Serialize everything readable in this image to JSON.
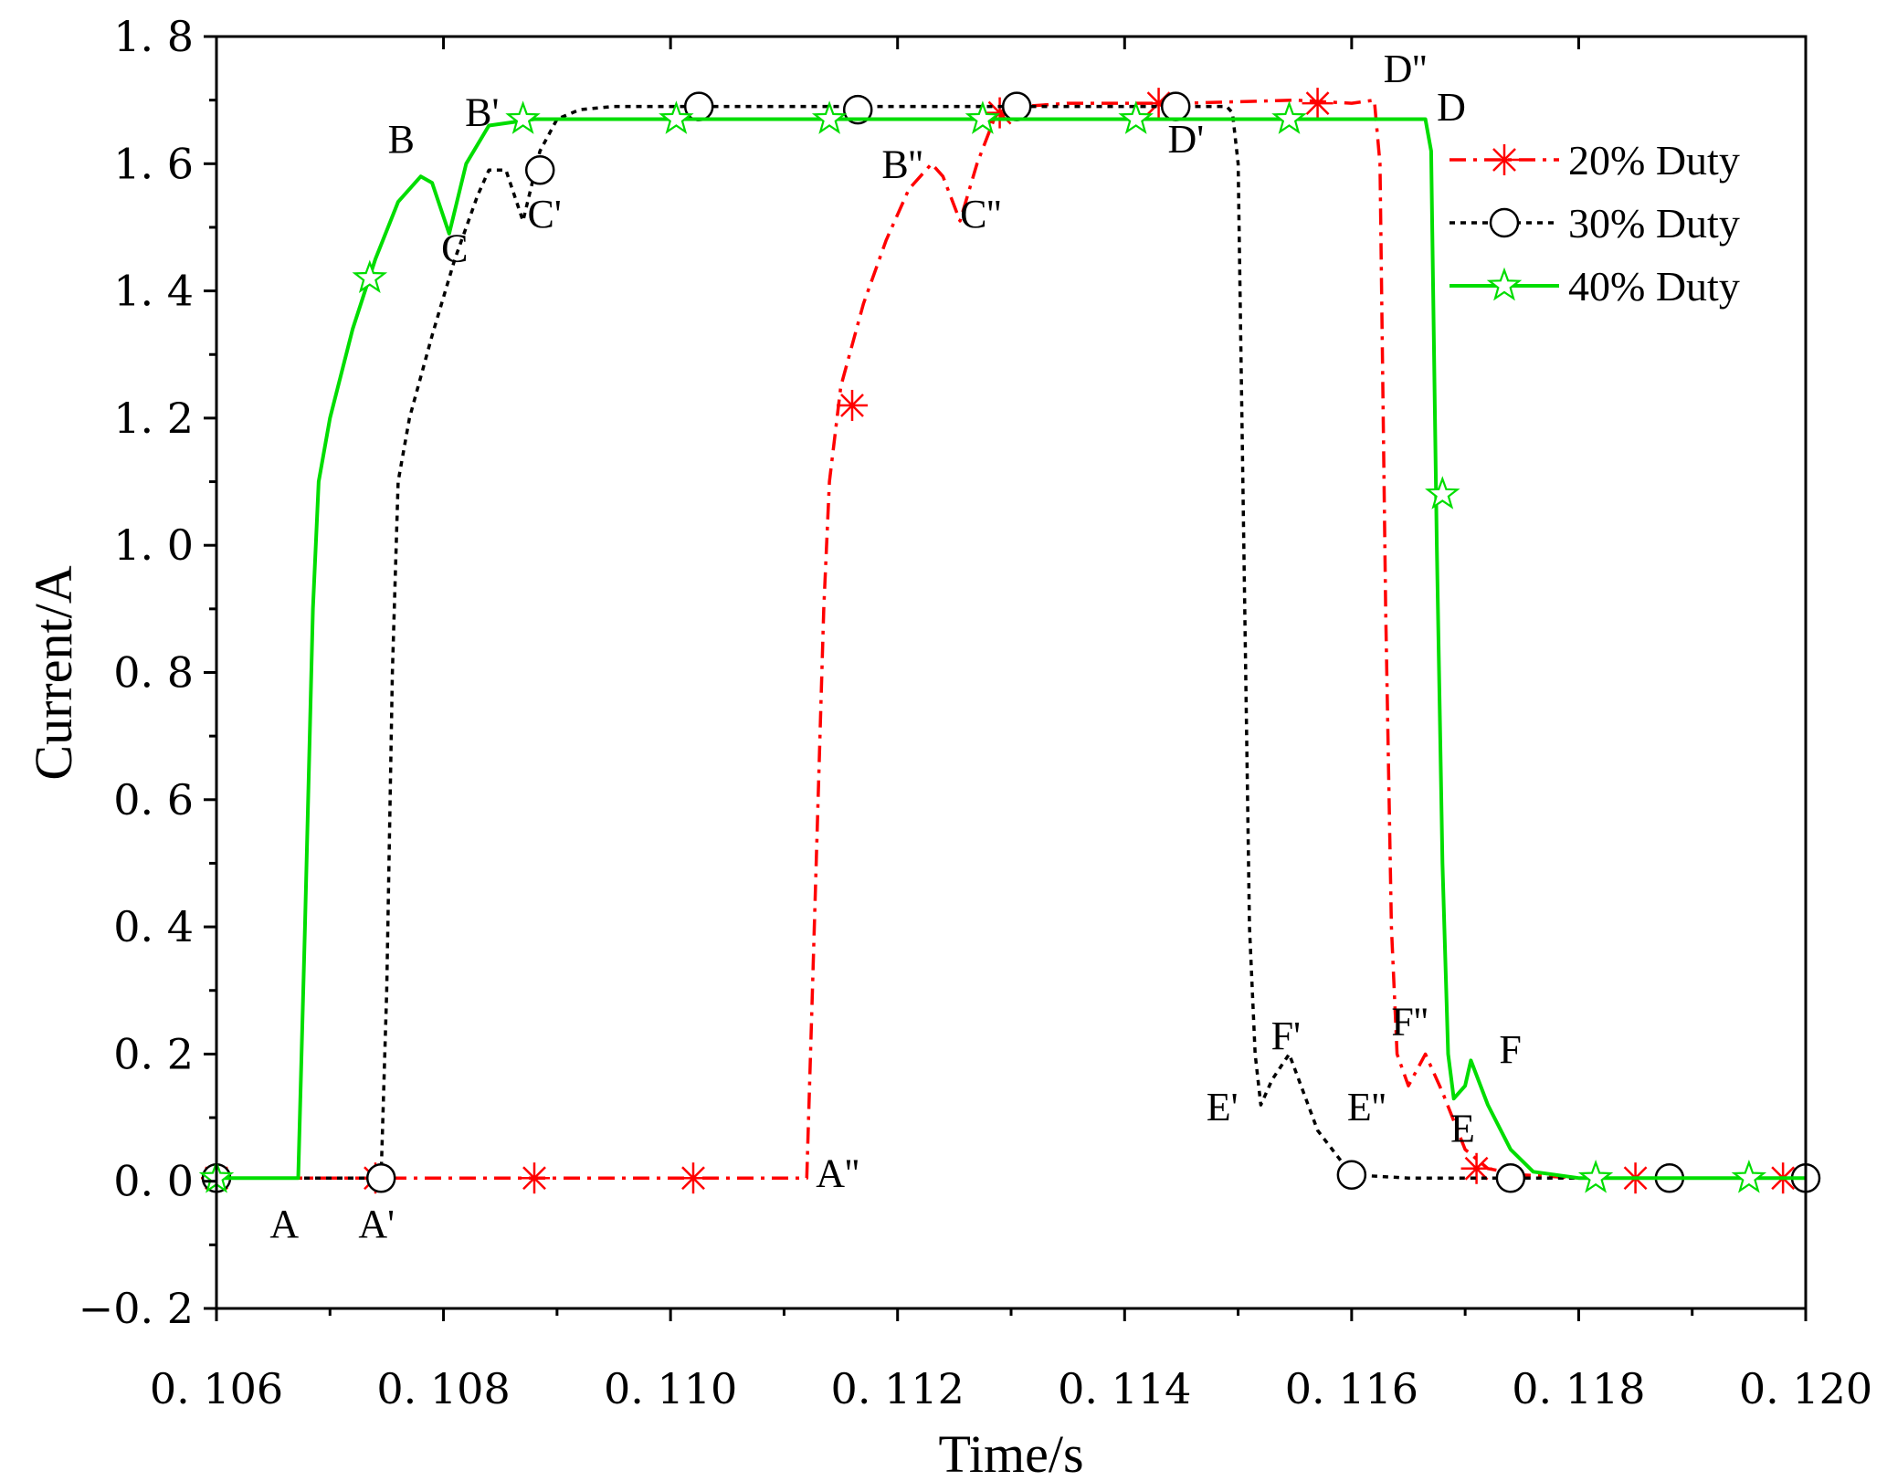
{
  "chart_data": {
    "type": "line",
    "title": "",
    "xlabel": "Time/s",
    "ylabel": "Current/A",
    "xlim": [
      0.106,
      0.12
    ],
    "ylim": [
      -0.2,
      1.8
    ],
    "x_ticks": [
      0.106,
      0.108,
      0.11,
      0.112,
      0.114,
      0.116,
      0.118,
      0.12
    ],
    "x_tick_labels": [
      "0. 106",
      "0. 108",
      "0. 110",
      "0. 112",
      "0. 114",
      "0. 116",
      "0. 118",
      "0. 120"
    ],
    "y_ticks": [
      -0.2,
      0.0,
      0.2,
      0.4,
      0.6,
      0.8,
      1.0,
      1.2,
      1.4,
      1.6,
      1.8
    ],
    "y_tick_labels": [
      "−0. 2",
      "0. 0",
      "0. 2",
      "0. 4",
      "0. 6",
      "0. 8",
      "1. 0",
      "1. 2",
      "1. 4",
      "1. 6",
      "1. 8"
    ],
    "grid": false,
    "legend_position": "top-right",
    "series": [
      {
        "name": "20% Duty",
        "color": "#ff0000",
        "line_style": "dash-dot",
        "marker": "asterisk",
        "x": [
          0.106,
          0.1112,
          0.11125,
          0.11135,
          0.1114,
          0.1115,
          0.1117,
          0.1119,
          0.1121,
          0.1123,
          0.1124,
          0.11255,
          0.1127,
          0.11285,
          0.1131,
          0.1135,
          0.1145,
          0.1155,
          0.116,
          0.1162,
          0.11625,
          0.1163,
          0.11635,
          0.1164,
          0.1165,
          0.11665,
          0.1168,
          0.117,
          0.1172,
          0.1175,
          0.118,
          0.12
        ],
        "y": [
          0.005,
          0.005,
          0.3,
          0.9,
          1.1,
          1.25,
          1.38,
          1.48,
          1.56,
          1.6,
          1.58,
          1.51,
          1.6,
          1.67,
          1.69,
          1.695,
          1.695,
          1.7,
          1.695,
          1.7,
          1.6,
          0.9,
          0.4,
          0.2,
          0.15,
          0.2,
          0.14,
          0.05,
          0.02,
          0.01,
          0.005,
          0.005
        ],
        "marker_x": [
          0.106,
          0.1074,
          0.1088,
          0.1102,
          0.1116,
          0.1129,
          0.1143,
          0.1157,
          0.1171,
          0.1185,
          0.1198
        ],
        "marker_y": [
          0.005,
          0.005,
          0.005,
          0.005,
          1.22,
          1.68,
          1.695,
          1.695,
          0.02,
          0.005,
          0.005
        ]
      },
      {
        "name": "30% Duty",
        "color": "#000000",
        "line_style": "dotted",
        "marker": "circle",
        "x": [
          0.106,
          0.10745,
          0.1075,
          0.10755,
          0.1076,
          0.1077,
          0.1079,
          0.1081,
          0.1083,
          0.1084,
          0.10855,
          0.1087,
          0.10885,
          0.109,
          0.1092,
          0.1095,
          0.1105,
          0.1135,
          0.1149,
          0.11495,
          0.115,
          0.11505,
          0.1151,
          0.11515,
          0.1152,
          0.1153,
          0.11545,
          0.1157,
          0.116,
          0.1165,
          0.12
        ],
        "y": [
          0.005,
          0.005,
          0.3,
          0.8,
          1.1,
          1.2,
          1.33,
          1.45,
          1.55,
          1.59,
          1.59,
          1.51,
          1.62,
          1.67,
          1.685,
          1.69,
          1.69,
          1.69,
          1.69,
          1.68,
          1.6,
          1.0,
          0.4,
          0.2,
          0.12,
          0.16,
          0.2,
          0.08,
          0.01,
          0.005,
          0.005
        ],
        "marker_x": [
          0.106,
          0.10745,
          0.10885,
          0.11025,
          0.11165,
          0.11305,
          0.11445,
          0.116,
          0.1174,
          0.1188,
          0.12
        ],
        "marker_y": [
          0.005,
          0.005,
          1.59,
          1.69,
          1.685,
          1.69,
          1.69,
          0.01,
          0.005,
          0.005,
          0.005
        ]
      },
      {
        "name": "40% Duty",
        "color": "#00dd00",
        "line_style": "solid",
        "marker": "star",
        "x": [
          0.106,
          0.10672,
          0.10678,
          0.10685,
          0.1069,
          0.107,
          0.1072,
          0.1074,
          0.1076,
          0.1078,
          0.1079,
          0.10805,
          0.1082,
          0.1084,
          0.1086,
          0.1088,
          0.1095,
          0.1105,
          0.1115,
          0.1125,
          0.1135,
          0.1145,
          0.1155,
          0.11665,
          0.1167,
          0.11675,
          0.1168,
          0.11685,
          0.1169,
          0.117,
          0.11705,
          0.1172,
          0.1174,
          0.1176,
          0.118,
          0.12
        ],
        "y": [
          0.005,
          0.005,
          0.4,
          0.9,
          1.1,
          1.2,
          1.34,
          1.45,
          1.54,
          1.58,
          1.57,
          1.49,
          1.6,
          1.66,
          1.665,
          1.67,
          1.67,
          1.67,
          1.67,
          1.67,
          1.67,
          1.67,
          1.67,
          1.67,
          1.62,
          1.0,
          0.5,
          0.2,
          0.13,
          0.15,
          0.19,
          0.12,
          0.05,
          0.015,
          0.005,
          0.005
        ],
        "marker_x": [
          0.106,
          0.10735,
          0.1087,
          0.11005,
          0.1114,
          0.11275,
          0.1141,
          0.11545,
          0.1168,
          0.11815,
          0.1195
        ],
        "marker_y": [
          0.005,
          1.42,
          1.67,
          1.67,
          1.67,
          1.67,
          1.67,
          1.67,
          1.08,
          0.005,
          0.005
        ]
      }
    ],
    "annotations": [
      {
        "text": "A",
        "x": 0.10647,
        "y": -0.088
      },
      {
        "text": "A'",
        "x": 0.10725,
        "y": -0.088
      },
      {
        "text": "A''",
        "x": 0.11128,
        "y": -0.008
      },
      {
        "text": "B",
        "x": 0.10751,
        "y": 1.618
      },
      {
        "text": "B'",
        "x": 0.10819,
        "y": 1.66
      },
      {
        "text": "B''",
        "x": 0.11186,
        "y": 1.578
      },
      {
        "text": "C",
        "x": 0.10798,
        "y": 1.446
      },
      {
        "text": "C'",
        "x": 0.10874,
        "y": 1.5
      },
      {
        "text": "C''",
        "x": 0.11255,
        "y": 1.5
      },
      {
        "text": "D",
        "x": 0.11675,
        "y": 1.668
      },
      {
        "text": "D'",
        "x": 0.11438,
        "y": 1.618
      },
      {
        "text": "D''",
        "x": 0.11628,
        "y": 1.728
      },
      {
        "text": "E",
        "x": 0.11687,
        "y": 0.062
      },
      {
        "text": "E'",
        "x": 0.11472,
        "y": 0.096
      },
      {
        "text": "E''",
        "x": 0.11596,
        "y": 0.096
      },
      {
        "text": "F",
        "x": 0.1173,
        "y": 0.186
      },
      {
        "text": "F'",
        "x": 0.11529,
        "y": 0.208
      },
      {
        "text": "F''",
        "x": 0.11635,
        "y": 0.23
      }
    ]
  }
}
